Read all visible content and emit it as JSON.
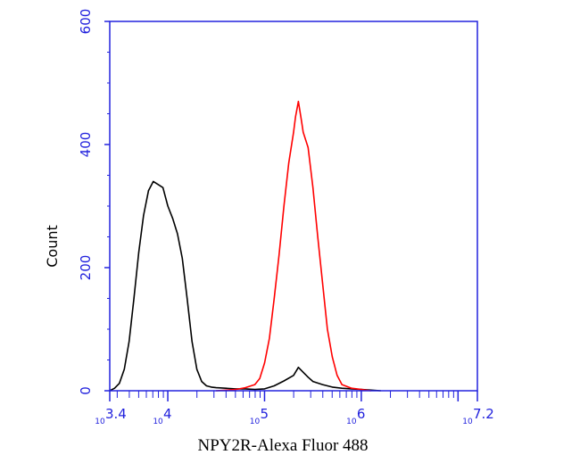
{
  "chart_data": {
    "type": "line",
    "title": "",
    "xlabel": "NPY2R-Alexa Fluor 488",
    "ylabel": "Count",
    "x_scale": "log10",
    "xlim": [
      3.4,
      7.2
    ],
    "ylim": [
      0,
      600
    ],
    "y_ticks": [
      {
        "value": 0,
        "label": "0"
      },
      {
        "value": 200,
        "label": "200"
      },
      {
        "value": 400,
        "label": "400"
      },
      {
        "value": 600,
        "label": "600"
      }
    ],
    "x_ticks": [
      {
        "value": 3.4,
        "base": "10",
        "exp": "3.4"
      },
      {
        "value": 4,
        "base": "10",
        "exp": "4"
      },
      {
        "value": 5,
        "base": "10",
        "exp": "5"
      },
      {
        "value": 6,
        "base": "10",
        "exp": "6"
      },
      {
        "value": 7.2,
        "base": "10",
        "exp": "7.2"
      }
    ],
    "axis_color": "#2222dd",
    "grid": false,
    "legend": "none",
    "series": [
      {
        "color": "#000000",
        "x": [
          3.4,
          3.45,
          3.5,
          3.55,
          3.6,
          3.65,
          3.7,
          3.75,
          3.8,
          3.85,
          3.9,
          3.95,
          4.0,
          4.05,
          4.1,
          4.15,
          4.2,
          4.25,
          4.3,
          4.35,
          4.4,
          4.45,
          4.5,
          4.6,
          4.7,
          4.8,
          4.9,
          5.0,
          5.1,
          5.2,
          5.3,
          5.35,
          5.4,
          5.45,
          5.5,
          5.6,
          5.7,
          5.8,
          5.9,
          6.0,
          6.2
        ],
        "y": [
          0,
          4,
          12,
          35,
          80,
          150,
          225,
          285,
          325,
          340,
          335,
          330,
          300,
          280,
          255,
          215,
          150,
          80,
          35,
          15,
          8,
          6,
          5,
          4,
          3,
          3,
          2,
          3,
          8,
          16,
          25,
          38,
          30,
          22,
          15,
          10,
          6,
          4,
          3,
          2,
          0
        ]
      },
      {
        "color": "#ff0000",
        "x": [
          4.5,
          4.7,
          4.8,
          4.9,
          4.95,
          5.0,
          5.05,
          5.1,
          5.15,
          5.2,
          5.25,
          5.3,
          5.32,
          5.35,
          5.38,
          5.4,
          5.45,
          5.5,
          5.55,
          5.6,
          5.65,
          5.7,
          5.75,
          5.8,
          5.9,
          6.0,
          6.1
        ],
        "y": [
          0,
          2,
          5,
          10,
          20,
          45,
          85,
          150,
          220,
          300,
          370,
          420,
          445,
          470,
          440,
          420,
          395,
          330,
          250,
          175,
          100,
          55,
          25,
          10,
          4,
          2,
          0
        ]
      }
    ]
  }
}
